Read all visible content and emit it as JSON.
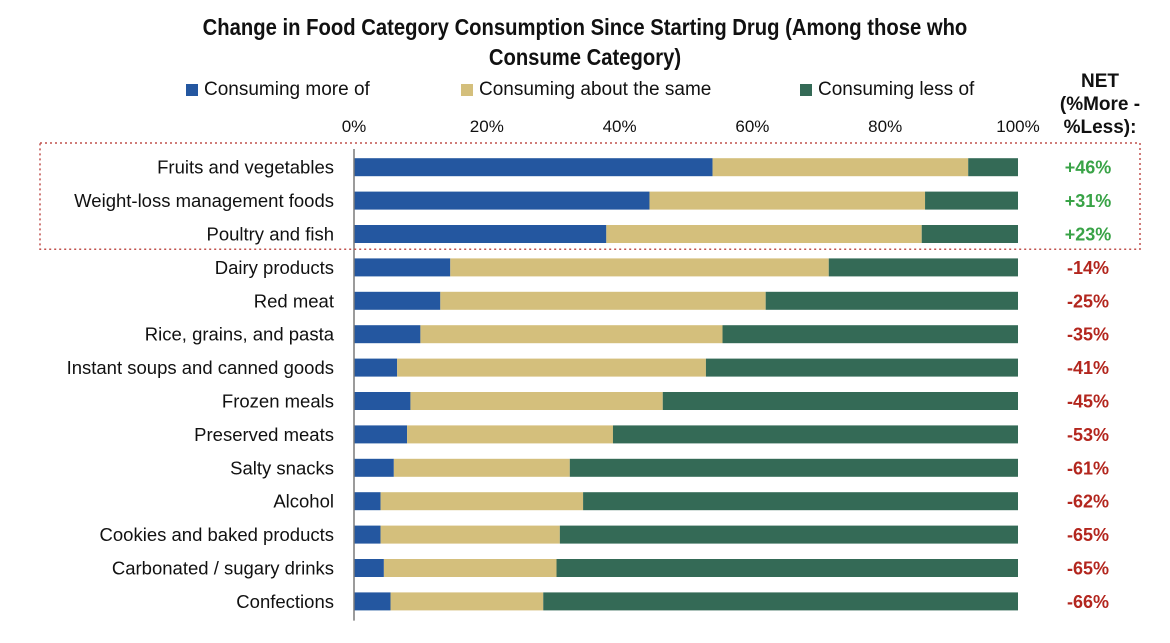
{
  "chart_data": {
    "type": "bar",
    "orientation": "horizontal",
    "stacked": true,
    "title": "Change in Food Category Consumption Since Starting Drug (Among those who Consume Category)",
    "title_lines": [
      "Change in Food Category Consumption Since Starting Drug (Among those who",
      "Consume Category)"
    ],
    "categories": [
      "Fruits and vegetables",
      "Weight-loss management foods",
      "Poultry and fish",
      "Dairy products",
      "Red meat",
      "Rice, grains, and pasta",
      "Instant soups and canned goods",
      "Frozen meals",
      "Preserved meats",
      "Salty snacks",
      "Alcohol",
      "Cookies and baked products",
      "Carbonated / sugary drinks",
      "Confections"
    ],
    "series": [
      {
        "name": "Consuming more of",
        "color": "#2457a0",
        "values": [
          54,
          44.5,
          38,
          14.5,
          13,
          10,
          6.5,
          8.5,
          8,
          6,
          4,
          4,
          4.5,
          5.5
        ]
      },
      {
        "name": "Consuming about the same",
        "color": "#d4bf7c",
        "values": [
          38.5,
          41.5,
          47.5,
          57,
          49,
          45.5,
          46.5,
          38,
          31,
          26.5,
          30.5,
          27,
          26,
          23
        ]
      },
      {
        "name": "Consuming less of",
        "color": "#346a56",
        "values": [
          7.5,
          14,
          14.5,
          28.5,
          38,
          44.5,
          47,
          53.5,
          61,
          67.5,
          65.5,
          69,
          69.5,
          71.5
        ]
      }
    ],
    "net": {
      "header": [
        "NET",
        "(%More -",
        "%Less):"
      ],
      "values": [
        "+46%",
        "+31%",
        "+23%",
        "-14%",
        "-25%",
        "-35%",
        "-41%",
        "-45%",
        "-53%",
        "-61%",
        "-62%",
        "-65%",
        "-65%",
        "-66%"
      ],
      "positive_color": "#39a347",
      "negative_color": "#b3261e"
    },
    "x_ticks": [
      "0%",
      "20%",
      "40%",
      "60%",
      "80%",
      "100%"
    ],
    "xlim": [
      0,
      100
    ],
    "highlight_rows": [
      0,
      1,
      2
    ],
    "highlight_color": "#c0504d",
    "legend_position": "top",
    "grid": false
  }
}
